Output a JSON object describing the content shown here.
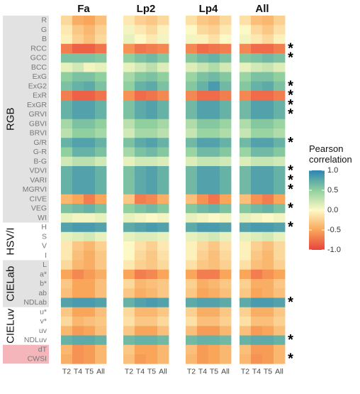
{
  "chart_data": {
    "type": "heatmap",
    "panels": [
      "Fa",
      "Lp2",
      "Lp4",
      "All"
    ],
    "columns": [
      "T2",
      "T4",
      "T5",
      "All"
    ],
    "rows": [
      "R",
      "G",
      "B",
      "RCC",
      "GCC",
      "BCC",
      "ExG",
      "ExG2",
      "ExR",
      "ExGR",
      "GRVI",
      "GBVI",
      "BRVI",
      "G/R",
      "G-R",
      "B-G",
      "VDVI",
      "VARI",
      "MGRVI",
      "CIVE",
      "VEG",
      "WI",
      "H",
      "S",
      "V",
      "I",
      "L",
      "a*",
      "b*",
      "ab",
      "NDLab",
      "u*",
      "v*",
      "uv",
      "NDLuv",
      "dT",
      "CWSI"
    ],
    "groups": [
      {
        "label": "RGB",
        "start": 0,
        "end": 21,
        "color": "#e2e2e2"
      },
      {
        "label": "HSV/I",
        "start": 22,
        "end": 25,
        "color": "#ffffff"
      },
      {
        "label": "CIELab",
        "start": 26,
        "end": 30,
        "color": "#e2e2e2"
      },
      {
        "label": "CIELuv",
        "start": 31,
        "end": 34,
        "color": "#ffffff"
      },
      {
        "label": "",
        "start": 35,
        "end": 36,
        "color": "#f4b6bb"
      }
    ],
    "significant_rows": [
      "RCC",
      "GCC",
      "ExG2",
      "ExR",
      "ExGR",
      "GRVI",
      "G/R",
      "VDVI",
      "VARI",
      "MGRVI",
      "VEG",
      "H",
      "NDLab",
      "NDLuv",
      "CWSI"
    ],
    "significance_marker": "*",
    "values": {
      "Fa": [
        [
          -0.2,
          -0.45,
          -0.5,
          -0.35
        ],
        [
          -0.1,
          -0.3,
          -0.4,
          -0.25
        ],
        [
          -0.05,
          -0.25,
          -0.35,
          -0.2
        ],
        [
          -0.7,
          -0.85,
          -0.85,
          -0.75
        ],
        [
          0.6,
          0.6,
          0.6,
          0.55
        ],
        [
          0.1,
          0.2,
          0.05,
          0.1
        ],
        [
          0.5,
          0.6,
          0.6,
          0.5
        ],
        [
          0.6,
          0.7,
          0.75,
          0.6
        ],
        [
          -0.7,
          -0.85,
          -0.85,
          -0.75
        ],
        [
          0.7,
          0.8,
          0.8,
          0.7
        ],
        [
          0.7,
          0.8,
          0.8,
          0.7
        ],
        [
          0.4,
          0.6,
          0.6,
          0.5
        ],
        [
          0.3,
          0.5,
          0.5,
          0.4
        ],
        [
          0.7,
          0.8,
          0.8,
          0.7
        ],
        [
          0.5,
          0.7,
          0.7,
          0.6
        ],
        [
          0.2,
          0.3,
          0.3,
          0.2
        ],
        [
          0.7,
          0.8,
          0.8,
          0.7
        ],
        [
          0.7,
          0.8,
          0.8,
          0.7
        ],
        [
          0.7,
          0.8,
          0.8,
          0.7
        ],
        [
          -0.4,
          -0.5,
          -0.7,
          -0.5
        ],
        [
          0.6,
          0.65,
          0.7,
          0.6
        ],
        [
          0.1,
          0.05,
          0.05,
          0.1
        ],
        [
          0.8,
          0.85,
          0.85,
          0.8
        ],
        [
          0.1,
          0.15,
          0.2,
          0.1
        ],
        [
          -0.1,
          -0.3,
          -0.4,
          -0.25
        ],
        [
          -0.1,
          -0.35,
          -0.45,
          -0.3
        ],
        [
          -0.2,
          -0.4,
          -0.45,
          -0.3
        ],
        [
          -0.5,
          -0.65,
          -0.55,
          -0.45
        ],
        [
          -0.3,
          -0.5,
          -0.5,
          -0.35
        ],
        [
          -0.35,
          -0.5,
          -0.5,
          -0.35
        ],
        [
          0.8,
          0.85,
          0.85,
          0.8
        ],
        [
          -0.3,
          -0.5,
          -0.5,
          -0.35
        ],
        [
          -0.2,
          -0.4,
          -0.35,
          -0.3
        ],
        [
          -0.4,
          -0.55,
          -0.5,
          -0.35
        ],
        [
          0.7,
          0.75,
          0.75,
          0.7
        ],
        [
          -0.4,
          -0.6,
          -0.55,
          -0.4
        ],
        [
          -0.45,
          -0.6,
          -0.55,
          -0.4
        ]
      ],
      "Lp2": [
        [
          -0.1,
          -0.25,
          -0.3,
          -0.2
        ],
        [
          0.05,
          -0.1,
          -0.2,
          -0.05
        ],
        [
          0.1,
          0.0,
          -0.1,
          0.05
        ],
        [
          -0.6,
          -0.75,
          -0.7,
          -0.65
        ],
        [
          0.5,
          0.6,
          0.65,
          0.55
        ],
        [
          0.1,
          0.2,
          0.3,
          0.15
        ],
        [
          0.4,
          0.55,
          0.6,
          0.5
        ],
        [
          0.5,
          0.7,
          0.75,
          0.6
        ],
        [
          -0.6,
          -0.8,
          -0.75,
          -0.65
        ],
        [
          0.6,
          0.75,
          0.8,
          0.7
        ],
        [
          0.6,
          0.75,
          0.8,
          0.7
        ],
        [
          0.3,
          0.5,
          0.5,
          0.4
        ],
        [
          0.2,
          0.4,
          0.4,
          0.3
        ],
        [
          0.6,
          0.75,
          0.8,
          0.7
        ],
        [
          0.4,
          0.6,
          0.65,
          0.55
        ],
        [
          0.1,
          0.2,
          0.2,
          0.15
        ],
        [
          0.6,
          0.75,
          0.8,
          0.7
        ],
        [
          0.6,
          0.75,
          0.8,
          0.7
        ],
        [
          0.6,
          0.75,
          0.8,
          0.7
        ],
        [
          -0.3,
          -0.7,
          -0.65,
          -0.45
        ],
        [
          0.5,
          0.6,
          0.65,
          0.55
        ],
        [
          0.1,
          0.05,
          0.0,
          0.05
        ],
        [
          0.75,
          0.8,
          0.85,
          0.8
        ],
        [
          0.1,
          0.15,
          0.15,
          0.1
        ],
        [
          0.0,
          -0.15,
          -0.25,
          -0.1
        ],
        [
          0.0,
          -0.2,
          -0.3,
          -0.15
        ],
        [
          -0.1,
          -0.25,
          -0.3,
          -0.2
        ],
        [
          -0.5,
          -0.7,
          -0.65,
          -0.5
        ],
        [
          -0.2,
          -0.4,
          -0.35,
          -0.3
        ],
        [
          -0.3,
          -0.45,
          -0.4,
          -0.3
        ],
        [
          0.7,
          0.8,
          0.85,
          0.8
        ],
        [
          -0.2,
          -0.4,
          -0.4,
          -0.3
        ],
        [
          -0.15,
          -0.3,
          -0.3,
          -0.2
        ],
        [
          -0.3,
          -0.5,
          -0.5,
          -0.35
        ],
        [
          0.65,
          0.7,
          0.7,
          0.65
        ],
        [
          -0.3,
          -0.5,
          -0.5,
          -0.4
        ],
        [
          -0.35,
          -0.55,
          -0.5,
          -0.4
        ]
      ],
      "Lp4": [
        [
          -0.15,
          -0.3,
          -0.35,
          -0.2
        ],
        [
          0.0,
          -0.2,
          -0.25,
          -0.1
        ],
        [
          0.05,
          -0.05,
          -0.15,
          0.0
        ],
        [
          -0.65,
          -0.8,
          -0.75,
          -0.7
        ],
        [
          0.55,
          0.65,
          0.7,
          0.6
        ],
        [
          0.15,
          0.25,
          0.35,
          0.2
        ],
        [
          0.45,
          0.6,
          0.65,
          0.55
        ],
        [
          0.55,
          0.7,
          0.85,
          0.65
        ],
        [
          -0.65,
          -0.8,
          -0.8,
          -0.7
        ],
        [
          0.65,
          0.8,
          0.8,
          0.7
        ],
        [
          0.65,
          0.8,
          0.8,
          0.7
        ],
        [
          0.35,
          0.55,
          0.55,
          0.45
        ],
        [
          0.25,
          0.45,
          0.45,
          0.35
        ],
        [
          0.65,
          0.8,
          0.8,
          0.7
        ],
        [
          0.45,
          0.65,
          0.65,
          0.55
        ],
        [
          0.15,
          0.25,
          0.25,
          0.2
        ],
        [
          0.65,
          0.8,
          0.8,
          0.7
        ],
        [
          0.65,
          0.8,
          0.8,
          0.7
        ],
        [
          0.65,
          0.8,
          0.8,
          0.7
        ],
        [
          -0.35,
          -0.6,
          -0.75,
          -0.5
        ],
        [
          0.55,
          0.65,
          0.7,
          0.6
        ],
        [
          0.1,
          0.05,
          0.0,
          0.05
        ],
        [
          0.75,
          0.85,
          0.85,
          0.8
        ],
        [
          0.1,
          0.15,
          0.2,
          0.1
        ],
        [
          -0.05,
          -0.2,
          -0.3,
          -0.15
        ],
        [
          -0.05,
          -0.25,
          -0.35,
          -0.2
        ],
        [
          -0.15,
          -0.3,
          -0.35,
          -0.25
        ],
        [
          -0.5,
          -0.7,
          -0.7,
          -0.5
        ],
        [
          -0.25,
          -0.45,
          -0.4,
          -0.3
        ],
        [
          -0.3,
          -0.5,
          -0.45,
          -0.35
        ],
        [
          0.75,
          0.8,
          0.8,
          0.75
        ],
        [
          -0.25,
          -0.45,
          -0.45,
          -0.3
        ],
        [
          -0.15,
          -0.35,
          -0.35,
          -0.25
        ],
        [
          -0.35,
          -0.55,
          -0.55,
          -0.4
        ],
        [
          0.65,
          0.7,
          0.7,
          0.65
        ],
        [
          -0.35,
          -0.55,
          -0.5,
          -0.4
        ],
        [
          -0.4,
          -0.55,
          -0.5,
          -0.4
        ]
      ],
      "All": [
        [
          -0.15,
          -0.35,
          -0.4,
          -0.25
        ],
        [
          0.0,
          -0.2,
          -0.3,
          -0.15
        ],
        [
          0.05,
          -0.1,
          -0.2,
          -0.05
        ],
        [
          -0.65,
          -0.8,
          -0.8,
          -0.7
        ],
        [
          0.55,
          0.6,
          0.65,
          0.6
        ],
        [
          0.1,
          0.2,
          0.25,
          0.15
        ],
        [
          0.45,
          0.6,
          0.6,
          0.5
        ],
        [
          0.55,
          0.7,
          0.75,
          0.6
        ],
        [
          -0.65,
          -0.8,
          -0.8,
          -0.7
        ],
        [
          0.65,
          0.8,
          0.8,
          0.7
        ],
        [
          0.65,
          0.8,
          0.8,
          0.7
        ],
        [
          0.35,
          0.55,
          0.55,
          0.45
        ],
        [
          0.25,
          0.45,
          0.45,
          0.35
        ],
        [
          0.65,
          0.8,
          0.8,
          0.7
        ],
        [
          0.45,
          0.65,
          0.65,
          0.55
        ],
        [
          0.15,
          0.25,
          0.25,
          0.2
        ],
        [
          0.65,
          0.8,
          0.8,
          0.7
        ],
        [
          0.65,
          0.8,
          0.8,
          0.7
        ],
        [
          0.65,
          0.8,
          0.8,
          0.7
        ],
        [
          -0.35,
          -0.6,
          -0.7,
          -0.5
        ],
        [
          0.55,
          0.65,
          0.7,
          0.6
        ],
        [
          0.1,
          0.05,
          0.0,
          0.05
        ],
        [
          0.8,
          0.85,
          0.85,
          0.8
        ],
        [
          0.1,
          0.15,
          0.2,
          0.1
        ],
        [
          -0.05,
          -0.25,
          -0.35,
          -0.2
        ],
        [
          -0.05,
          -0.3,
          -0.4,
          -0.2
        ],
        [
          -0.15,
          -0.35,
          -0.4,
          -0.25
        ],
        [
          -0.5,
          -0.7,
          -0.6,
          -0.5
        ],
        [
          -0.25,
          -0.45,
          -0.45,
          -0.3
        ],
        [
          -0.3,
          -0.5,
          -0.45,
          -0.35
        ],
        [
          0.75,
          0.85,
          0.85,
          0.8
        ],
        [
          -0.25,
          -0.45,
          -0.45,
          -0.3
        ],
        [
          -0.15,
          -0.35,
          -0.35,
          -0.25
        ],
        [
          -0.35,
          -0.55,
          -0.5,
          -0.35
        ],
        [
          0.7,
          0.75,
          0.75,
          0.7
        ],
        [
          -0.35,
          -0.55,
          -0.55,
          -0.4
        ],
        [
          -0.4,
          -0.6,
          -0.55,
          -0.4
        ]
      ]
    },
    "legend": {
      "title_lines": [
        "Pearson",
        "correlation"
      ],
      "ticks": [
        1.0,
        0.5,
        0.0,
        -0.5,
        -1.0
      ],
      "tick_labels": [
        "1.0",
        "0.5",
        "0.0",
        "-0.5",
        "-1.0"
      ],
      "range": [
        -1,
        1
      ],
      "placement": "right"
    },
    "color_scale": [
      {
        "v": -1.0,
        "c": "#e8433e"
      },
      {
        "v": -0.5,
        "c": "#f9a65a"
      },
      {
        "v": 0.0,
        "c": "#fdf9c6"
      },
      {
        "v": 0.5,
        "c": "#8fd09e"
      },
      {
        "v": 1.0,
        "c": "#2b84b4"
      }
    ]
  }
}
